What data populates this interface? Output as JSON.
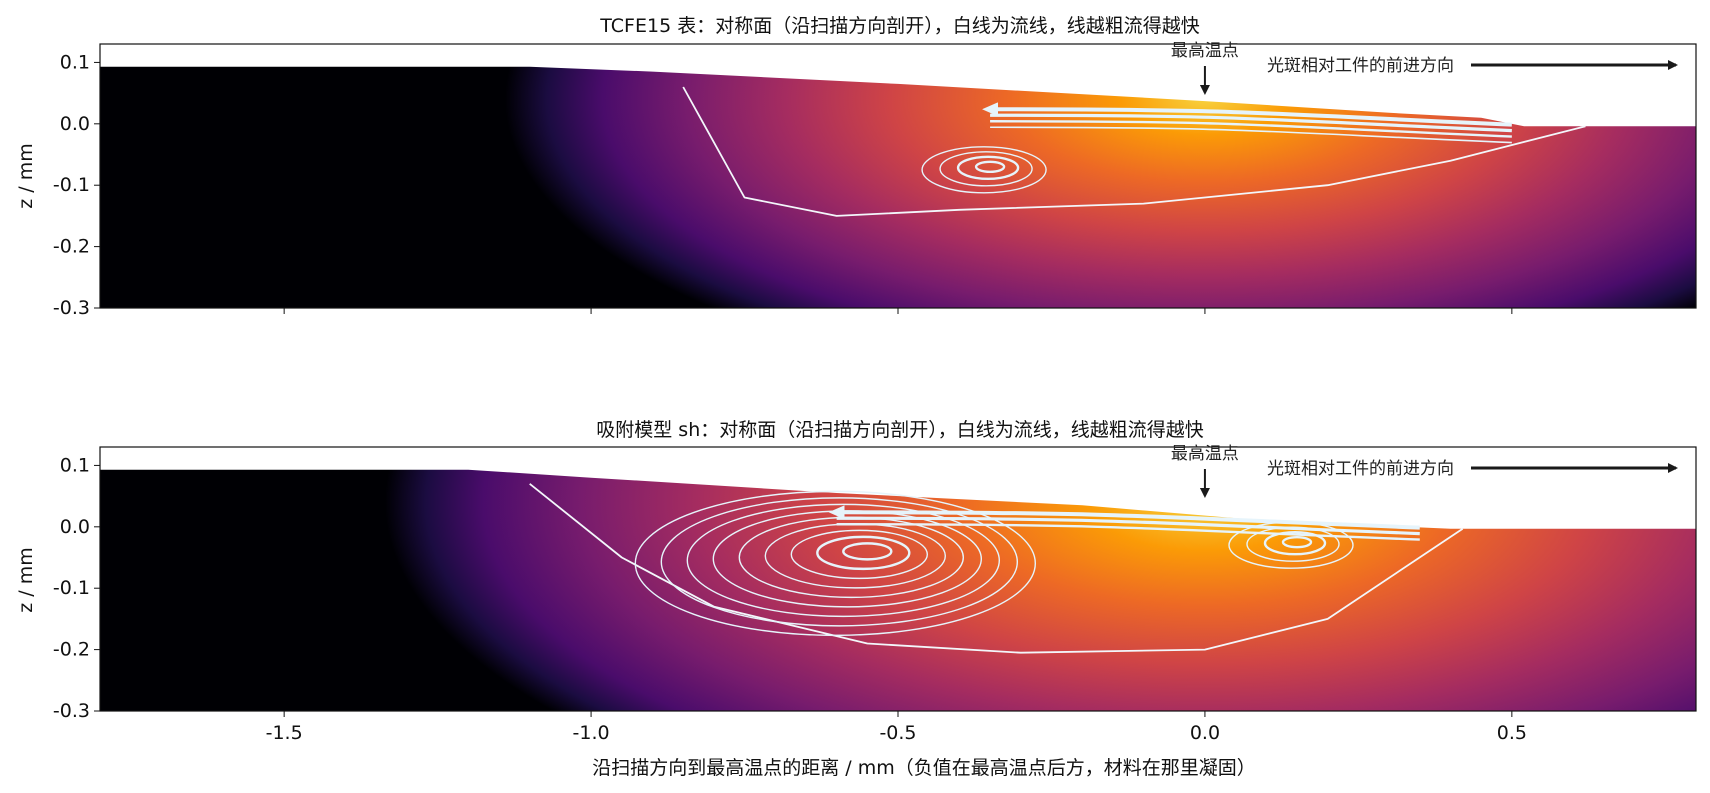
{
  "chart_data": [
    {
      "type": "heatmap",
      "title": "TCFE15 表：对称面（沿扫描方向剖开），白线为流线，线越粗流得越快",
      "xlabel": "",
      "ylabel": "z / mm",
      "xlim": [
        -1.8,
        0.8
      ],
      "ylim": [
        -0.3,
        0.13
      ],
      "xticks": [
        -1.5,
        -1.0,
        -0.5,
        0.0,
        0.5
      ],
      "xtick_labels": [
        "",
        "",
        "",
        "",
        ""
      ],
      "yticks": [
        0.1,
        0.0,
        -0.1,
        -0.2,
        -0.3
      ],
      "ytick_labels": [
        "0.1",
        "0.0",
        "-0.1",
        "-0.2",
        "-0.3"
      ],
      "colormap": "inferno",
      "peak_temperature_point": {
        "label": "最高温点",
        "x": 0.0
      },
      "scan_direction_label": "光斑相对工件的前进方向",
      "surface": [
        [
          -1.8,
          0.093
        ],
        [
          -1.1,
          0.093
        ],
        [
          -0.9,
          0.085
        ],
        [
          -0.5,
          0.065
        ],
        [
          0.0,
          0.037
        ],
        [
          0.3,
          0.018
        ],
        [
          0.45,
          0.01
        ],
        [
          0.52,
          -0.004
        ],
        [
          0.8,
          -0.004
        ]
      ],
      "melt_pool_boundary": [
        [
          -0.85,
          0.06
        ],
        [
          -0.75,
          -0.12
        ],
        [
          -0.6,
          -0.15
        ],
        [
          -0.4,
          -0.14
        ],
        [
          -0.1,
          -0.13
        ],
        [
          0.2,
          -0.1
        ],
        [
          0.4,
          -0.06
        ],
        [
          0.62,
          -0.004
        ]
      ],
      "vortex_centers": [
        [
          -0.35,
          -0.07
        ]
      ]
    },
    {
      "type": "heatmap",
      "title": "吸附模型 sh：对称面（沿扫描方向剖开），白线为流线，线越粗流得越快",
      "xlabel": "沿扫描方向到最高温点的距离 / mm（负值在最高温点后方，材料在那里凝固）",
      "ylabel": "z / mm",
      "xlim": [
        -1.8,
        0.8
      ],
      "ylim": [
        -0.3,
        0.13
      ],
      "xticks": [
        -1.5,
        -1.0,
        -0.5,
        0.0,
        0.5
      ],
      "xtick_labels": [
        "-1.5",
        "-1.0",
        "-0.5",
        "0.0",
        "0.5"
      ],
      "yticks": [
        0.1,
        0.0,
        -0.1,
        -0.2,
        -0.3
      ],
      "ytick_labels": [
        "0.1",
        "0.0",
        "-0.1",
        "-0.2",
        "-0.3"
      ],
      "colormap": "inferno",
      "peak_temperature_point": {
        "label": "最高温点",
        "x": 0.0
      },
      "scan_direction_label": "光斑相对工件的前进方向",
      "surface": [
        [
          -1.8,
          0.093
        ],
        [
          -1.2,
          0.093
        ],
        [
          -1.0,
          0.08
        ],
        [
          -0.6,
          0.055
        ],
        [
          -0.2,
          0.035
        ],
        [
          0.1,
          0.01
        ],
        [
          0.4,
          -0.003
        ],
        [
          0.8,
          -0.003
        ]
      ],
      "melt_pool_boundary": [
        [
          -1.1,
          0.07
        ],
        [
          -0.95,
          -0.05
        ],
        [
          -0.8,
          -0.13
        ],
        [
          -0.55,
          -0.19
        ],
        [
          -0.3,
          -0.205
        ],
        [
          0.0,
          -0.2
        ],
        [
          0.2,
          -0.15
        ],
        [
          0.42,
          -0.003
        ]
      ],
      "vortex_centers": [
        [
          -0.55,
          -0.04
        ],
        [
          0.15,
          -0.025
        ]
      ]
    }
  ]
}
